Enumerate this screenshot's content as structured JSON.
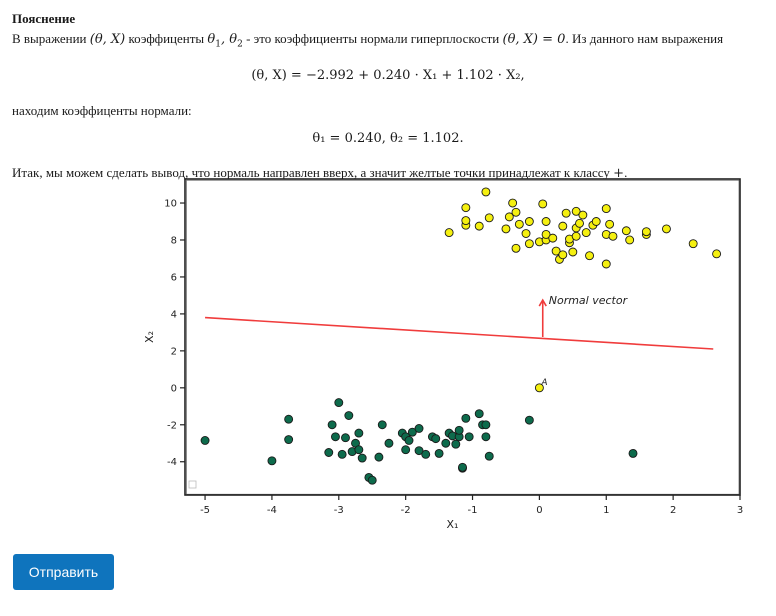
{
  "heading": "Пояснение",
  "p1": {
    "t1": "В выражении ",
    "m1": "(θ, X)",
    "t2": " коэффиценты ",
    "m2": "θ",
    "m2s": "1",
    "m2b": ", θ",
    "m2bs": "2",
    "t3": " - это коэффициенты нормали гиперплоскости ",
    "m3": "(θ, X) = 0",
    "t4": ". Из данного нам выражения"
  },
  "display1": "(θ, X) = −2.992 + 0.240 · X₁ + 1.102 · X₂,",
  "p2": "находим коэффиценты нормали:",
  "display2": "θ₁ = 0.240, θ₂ = 1.102.",
  "p3": {
    "t1": "Итак, мы можем сделать вывод, что нормаль направлен вверх, а значит желтые точки принадлежат к классу ",
    "m1": "+",
    "t2": "."
  },
  "submit_label": "Отправить",
  "colors": {
    "yellow": "#f5f010",
    "green": "#0d6b4c",
    "line": "#f03c3c",
    "button": "#0f74bd"
  },
  "chart_data": {
    "type": "scatter",
    "xlabel": "X₁",
    "ylabel": "X₂",
    "xlim": [
      -5.3,
      3.0
    ],
    "ylim": [
      -5.8,
      11.3
    ],
    "xticks": [
      -5,
      -4,
      -3,
      -2,
      -1,
      0,
      1,
      2,
      3
    ],
    "yticks": [
      -4,
      -2,
      0,
      2,
      4,
      6,
      8,
      10
    ],
    "grid": false,
    "separating_line": {
      "x": [
        -5.0,
        2.6
      ],
      "y": [
        3.8,
        2.1
      ]
    },
    "normal_vector": {
      "from": [
        0.05,
        2.75
      ],
      "to": [
        0.05,
        4.75
      ],
      "label": "Normal vector"
    },
    "point_A": {
      "x": 0.0,
      "y": 0.0,
      "label": "A"
    },
    "series": [
      {
        "class": "+",
        "color": "yellow",
        "points": [
          [
            -1.35,
            8.4
          ],
          [
            -1.1,
            8.8
          ],
          [
            -1.1,
            9.05
          ],
          [
            -1.1,
            9.75
          ],
          [
            -0.9,
            8.75
          ],
          [
            -0.8,
            10.6
          ],
          [
            -0.75,
            9.2
          ],
          [
            -0.5,
            8.6
          ],
          [
            -0.45,
            9.25
          ],
          [
            -0.35,
            9.5
          ],
          [
            -0.3,
            8.85
          ],
          [
            -0.2,
            8.35
          ],
          [
            -0.15,
            7.8
          ],
          [
            -0.15,
            9.0
          ],
          [
            -0.4,
            10.0
          ],
          [
            -0.35,
            7.55
          ],
          [
            0.0,
            7.9
          ],
          [
            0.05,
            9.95
          ],
          [
            0.1,
            8.0
          ],
          [
            0.1,
            9.0
          ],
          [
            0.1,
            8.3
          ],
          [
            0.2,
            8.1
          ],
          [
            0.25,
            7.4
          ],
          [
            0.3,
            6.95
          ],
          [
            0.35,
            7.2
          ],
          [
            0.35,
            8.75
          ],
          [
            0.4,
            9.45
          ],
          [
            0.45,
            7.85
          ],
          [
            0.45,
            8.05
          ],
          [
            0.5,
            7.35
          ],
          [
            0.55,
            8.2
          ],
          [
            0.55,
            8.65
          ],
          [
            0.55,
            9.55
          ],
          [
            0.6,
            8.9
          ],
          [
            0.65,
            9.35
          ],
          [
            0.7,
            8.4
          ],
          [
            0.75,
            7.15
          ],
          [
            0.8,
            8.8
          ],
          [
            0.85,
            9.0
          ],
          [
            1.0,
            8.3
          ],
          [
            1.0,
            9.7
          ],
          [
            1.05,
            8.85
          ],
          [
            1.0,
            6.7
          ],
          [
            1.1,
            8.2
          ],
          [
            1.3,
            8.5
          ],
          [
            1.35,
            8.0
          ],
          [
            1.6,
            8.3
          ],
          [
            1.6,
            8.45
          ],
          [
            1.9,
            8.6
          ],
          [
            2.3,
            7.8
          ],
          [
            2.65,
            7.25
          ]
        ]
      },
      {
        "class": "−",
        "color": "green",
        "points": [
          [
            -5.0,
            -2.85
          ],
          [
            -4.0,
            -3.95
          ],
          [
            -3.75,
            -1.7
          ],
          [
            -3.75,
            -2.8
          ],
          [
            -3.15,
            -3.5
          ],
          [
            -3.1,
            -2.0
          ],
          [
            -3.05,
            -2.65
          ],
          [
            -3.0,
            -0.8
          ],
          [
            -2.95,
            -3.6
          ],
          [
            -2.9,
            -2.7
          ],
          [
            -2.85,
            -1.5
          ],
          [
            -2.8,
            -3.45
          ],
          [
            -2.75,
            -3.0
          ],
          [
            -2.7,
            -3.35
          ],
          [
            -2.7,
            -2.45
          ],
          [
            -2.65,
            -3.8
          ],
          [
            -2.55,
            -4.85
          ],
          [
            -2.5,
            -5.0
          ],
          [
            -2.4,
            -3.75
          ],
          [
            -2.35,
            -2.0
          ],
          [
            -2.25,
            -3.0
          ],
          [
            -2.05,
            -2.45
          ],
          [
            -2.0,
            -3.35
          ],
          [
            -2.0,
            -2.65
          ],
          [
            -1.95,
            -2.85
          ],
          [
            -1.9,
            -2.4
          ],
          [
            -1.8,
            -2.2
          ],
          [
            -1.8,
            -3.4
          ],
          [
            -1.7,
            -3.6
          ],
          [
            -1.6,
            -2.65
          ],
          [
            -1.55,
            -2.75
          ],
          [
            -1.5,
            -3.55
          ],
          [
            -1.4,
            -3.0
          ],
          [
            -1.35,
            -2.45
          ],
          [
            -1.3,
            -2.6
          ],
          [
            -1.25,
            -3.05
          ],
          [
            -1.2,
            -2.65
          ],
          [
            -1.2,
            -2.3
          ],
          [
            -1.15,
            -4.35
          ],
          [
            -1.15,
            -4.3
          ],
          [
            -1.1,
            -1.65
          ],
          [
            -1.05,
            -2.65
          ],
          [
            -0.9,
            -1.4
          ],
          [
            -0.85,
            -2.0
          ],
          [
            -0.8,
            -2.65
          ],
          [
            -0.8,
            -2.0
          ],
          [
            -0.75,
            -3.7
          ],
          [
            -0.15,
            -1.75
          ],
          [
            1.4,
            -3.55
          ]
        ]
      }
    ]
  }
}
